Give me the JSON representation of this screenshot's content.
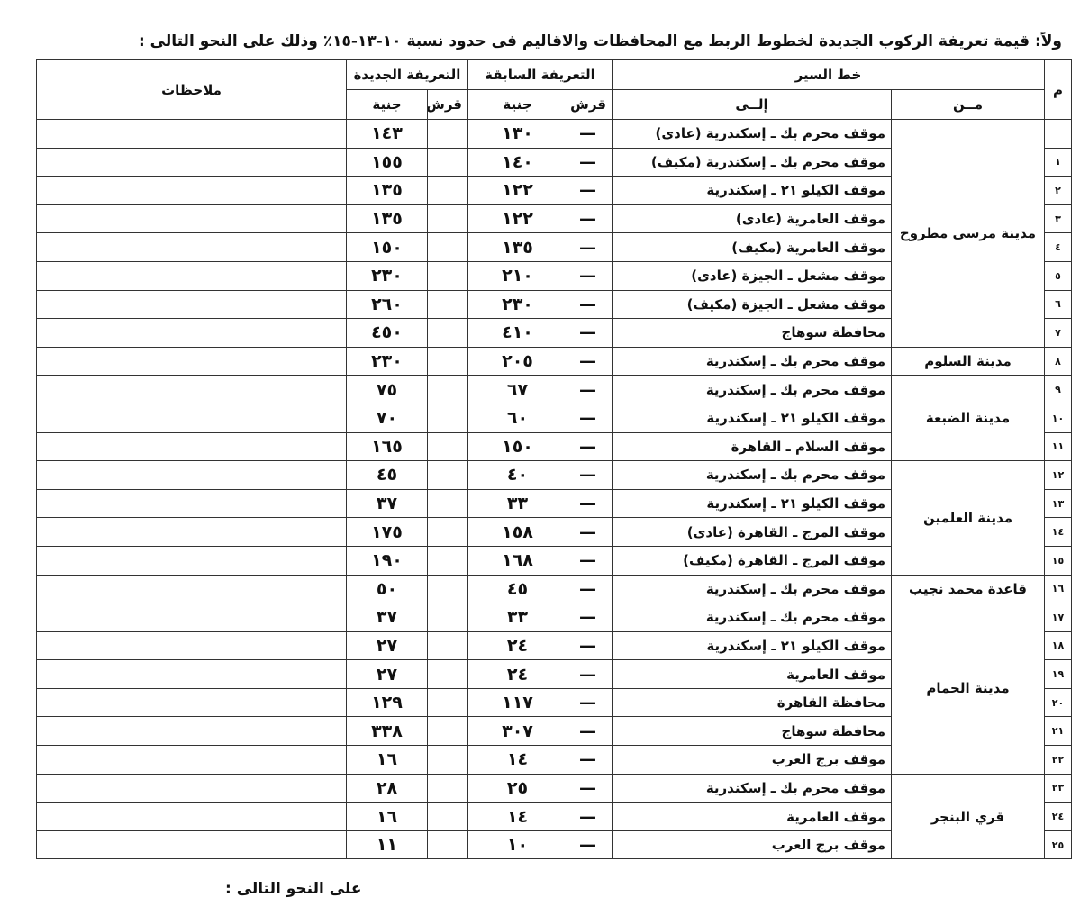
{
  "header": {
    "title": "ولاً: قيمة تعريفة الركوب الجديدة لخطوط الربط مع المحافظات والاقاليم فى حدود نسبة ١٠-١٣-١٥٪ وذلك على النحو التالى :"
  },
  "table": {
    "head": {
      "no": "م",
      "route": "خط السير",
      "prev": "التعريفة السابقة",
      "new": "التعريفة الجديدة",
      "notes": "ملاحظات",
      "from": "مــن",
      "to": "إلــى",
      "piastre": "قرش",
      "pound": "جنية",
      "new_piastre": "قرش",
      "new_pound": "جنية"
    },
    "groups": [
      {
        "from": "مدينة مرسى مطروح",
        "rows": [
          {
            "to": "موقف محرم بك ـ إسكندرية (عادى)",
            "prev_piastre": "—",
            "prev_pound": "١٣٠",
            "new_pound": "١٤٣"
          },
          {
            "no": "١",
            "to": "موقف محرم بك ـ إسكندرية (مكيف)",
            "prev_piastre": "—",
            "prev_pound": "١٤٠",
            "new_pound": "١٥٥"
          },
          {
            "no": "٢",
            "to": "موقف الكيلو ٢١ ـ إسكندرية",
            "prev_piastre": "—",
            "prev_pound": "١٢٢",
            "new_pound": "١٣٥"
          },
          {
            "no": "٣",
            "to": "موقف العامرية (عادى)",
            "prev_piastre": "—",
            "prev_pound": "١٢٢",
            "new_pound": "١٣٥"
          },
          {
            "no": "٤",
            "to": "موقف العامرية (مكيف)",
            "prev_piastre": "—",
            "prev_pound": "١٣٥",
            "new_pound": "١٥٠"
          },
          {
            "no": "٥",
            "to": "موقف مشعل ـ الجيزة (عادى)",
            "prev_piastre": "—",
            "prev_pound": "٢١٠",
            "new_pound": "٢٣٠"
          },
          {
            "no": "٦",
            "to": "موقف مشعل ـ الجيزة (مكيف)",
            "prev_piastre": "—",
            "prev_pound": "٢٣٠",
            "new_pound": "٢٦٠"
          },
          {
            "no": "٧",
            "to": "محافظة سوهاج",
            "prev_piastre": "—",
            "prev_pound": "٤١٠",
            "new_pound": "٤٥٠"
          }
        ]
      },
      {
        "from": "مدينة السلوم",
        "rows": [
          {
            "no": "٨",
            "to": "موقف محرم بك ـ إسكندرية",
            "prev_piastre": "—",
            "prev_pound": "٢٠٥",
            "new_pound": "٢٣٠"
          }
        ]
      },
      {
        "from": "مدينة الضبعة",
        "rows": [
          {
            "no": "٩",
            "to": "موقف محرم بك ـ إسكندرية",
            "prev_piastre": "—",
            "prev_pound": "٦٧",
            "new_pound": "٧٥"
          },
          {
            "no": "١٠",
            "to": "موقف الكيلو ٢١ ـ إسكندرية",
            "prev_piastre": "—",
            "prev_pound": "٦٠",
            "new_pound": "٧٠"
          },
          {
            "no": "١١",
            "to": "موقف السلام ـ القاهرة",
            "prev_piastre": "—",
            "prev_pound": "١٥٠",
            "new_pound": "١٦٥"
          }
        ]
      },
      {
        "from": "مدينة العلمين",
        "rows": [
          {
            "no": "١٢",
            "to": "موقف محرم بك ـ إسكندرية",
            "prev_piastre": "—",
            "prev_pound": "٤٠",
            "new_pound": "٤٥"
          },
          {
            "no": "١٣",
            "to": "موقف الكيلو ٢١ ـ إسكندرية",
            "prev_piastre": "—",
            "prev_pound": "٣٣",
            "new_pound": "٣٧"
          },
          {
            "no": "١٤",
            "to": "موقف المرج ـ القاهرة (عادى)",
            "prev_piastre": "—",
            "prev_pound": "١٥٨",
            "new_pound": "١٧٥"
          },
          {
            "no": "١٥",
            "to": "موقف المرج ـ القاهرة (مكيف)",
            "prev_piastre": "—",
            "prev_pound": "١٦٨",
            "new_pound": "١٩٠"
          }
        ]
      },
      {
        "from": "قاعدة محمد نجيب",
        "rows": [
          {
            "no": "١٦",
            "to": "موقف محرم بك ـ إسكندرية",
            "prev_piastre": "—",
            "prev_pound": "٤٥",
            "new_pound": "٥٠"
          }
        ]
      },
      {
        "from": "مدينة الحمام",
        "rows": [
          {
            "no": "١٧",
            "to": "موقف محرم بك ـ إسكندرية",
            "prev_piastre": "—",
            "prev_pound": "٣٣",
            "new_pound": "٣٧"
          },
          {
            "no": "١٨",
            "to": "موقف الكيلو ٢١ ـ إسكندرية",
            "prev_piastre": "—",
            "prev_pound": "٢٤",
            "new_pound": "٢٧"
          },
          {
            "no": "١٩",
            "to": "موقف العامرية",
            "prev_piastre": "—",
            "prev_pound": "٢٤",
            "new_pound": "٢٧"
          },
          {
            "no": "٢٠",
            "to": "محافظة القاهرة",
            "prev_piastre": "—",
            "prev_pound": "١١٧",
            "new_pound": "١٢٩"
          },
          {
            "no": "٢١",
            "to": "محافظة سوهاج",
            "prev_piastre": "—",
            "prev_pound": "٣٠٧",
            "new_pound": "٣٣٨"
          },
          {
            "no": "٢٢",
            "to": "موقف برج العرب",
            "prev_piastre": "—",
            "prev_pound": "١٤",
            "new_pound": "١٦"
          }
        ]
      },
      {
        "from": "قري البنجر",
        "rows": [
          {
            "no": "٢٣",
            "to": "موقف محرم بك ـ إسكندرية",
            "prev_piastre": "—",
            "prev_pound": "٢٥",
            "new_pound": "٢٨"
          },
          {
            "no": "٢٤",
            "to": "موقف العامرية",
            "prev_piastre": "—",
            "prev_pound": "١٤",
            "new_pound": "١٦"
          },
          {
            "no": "٢٥",
            "to": "موقف برج العرب",
            "prev_piastre": "—",
            "prev_pound": "١٠",
            "new_pound": "١١"
          }
        ]
      }
    ]
  },
  "footer": {
    "text": "على النحو التالى :"
  }
}
